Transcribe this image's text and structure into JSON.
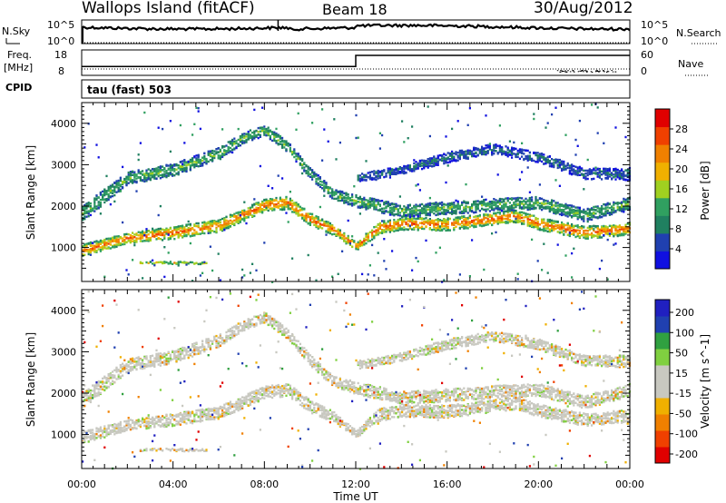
{
  "header": {
    "site": "Wallops Island (fitACF)",
    "beam": "Beam 18",
    "date": "30/Aug/2012"
  },
  "strip_nsky": {
    "label": "N.Sky",
    "right_label": "N.Search",
    "ticks_left": [
      "10^5",
      "10^0"
    ],
    "ticks_right": [
      "10^5",
      "10^0"
    ]
  },
  "strip_freq": {
    "label_line1": "Freq.",
    "label_line2": "[MHz]",
    "right_label": "Nave",
    "ticks_left": [
      "18",
      "8"
    ],
    "ticks_right": [
      "60",
      "0"
    ]
  },
  "cpid": {
    "label": "CPID",
    "value": "tau (fast) 503"
  },
  "colors": {
    "power_scale": [
      "#1010e0",
      "#2040b0",
      "#208060",
      "#30a060",
      "#a0d020",
      "#f0b000",
      "#f08000",
      "#f04000",
      "#e00000"
    ],
    "velocity_scale": [
      "#e00000",
      "#f04000",
      "#f08000",
      "#f0b000",
      "#c8c8c0",
      "#c8c8c0",
      "#80d040",
      "#30a040",
      "#2040b0",
      "#2020c0"
    ],
    "ground_scatter": "#c8c8c0"
  },
  "chart_data": [
    {
      "type": "heatmap",
      "name": "power-panel",
      "ylabel": "Slant Range [km]",
      "ylim": [
        180,
        4500
      ],
      "xlim": [
        0,
        24
      ],
      "y_ticks": [
        "1000",
        "2000",
        "3000",
        "4000"
      ],
      "colorbar": {
        "label": "Power [dB]",
        "ticks": [
          "4",
          "8",
          "12",
          "16",
          "20",
          "24",
          "28"
        ],
        "range": [
          0,
          32
        ]
      },
      "bands": [
        {
          "feature": "main-F-layer-scatter",
          "points": [
            [
              0,
              950,
              300
            ],
            [
              2,
              1250,
              250
            ],
            [
              4,
              1380,
              300
            ],
            [
              6,
              1550,
              300
            ],
            [
              8,
              2050,
              300
            ],
            [
              9,
              2100,
              300
            ],
            [
              10,
              1700,
              300
            ],
            [
              11,
              1450,
              250
            ],
            [
              12,
              1050,
              200
            ],
            [
              13,
              1500,
              300
            ],
            [
              14,
              1600,
              300
            ],
            [
              16,
              1580,
              300
            ],
            [
              18,
              1720,
              300
            ],
            [
              19,
              1780,
              300
            ],
            [
              20,
              1600,
              300
            ],
            [
              22,
              1380,
              300
            ],
            [
              24,
              1480,
              300
            ]
          ],
          "level": 26
        },
        {
          "feature": "second-hop-scatter",
          "points": [
            [
              0,
              1850,
              400
            ],
            [
              2,
              2700,
              300
            ],
            [
              4,
              2900,
              300
            ],
            [
              6,
              3300,
              300
            ],
            [
              7,
              3650,
              250
            ],
            [
              8,
              3850,
              250
            ],
            [
              9,
              3450,
              250
            ],
            [
              10,
              2800,
              250
            ],
            [
              11,
              2300,
              250
            ],
            [
              12,
              2150,
              300
            ],
            [
              14,
              1900,
              300
            ],
            [
              18,
              2050,
              300
            ],
            [
              20,
              2100,
              300
            ],
            [
              22,
              1800,
              300
            ],
            [
              24,
              2100,
              300
            ]
          ],
          "level": 14
        },
        {
          "feature": "far-range-scatter",
          "points": [
            [
              12,
              2700,
              200
            ],
            [
              14,
              2900,
              200
            ],
            [
              16,
              3200,
              250
            ],
            [
              18,
              3400,
              250
            ],
            [
              20,
              3200,
              250
            ],
            [
              22,
              2800,
              250
            ],
            [
              24,
              2800,
              300
            ]
          ],
          "level": 8
        },
        {
          "feature": "short-range-patch",
          "points": [
            [
              2.5,
              650,
              60
            ],
            [
              3.5,
              660,
              60
            ],
            [
              4.5,
              650,
              60
            ],
            [
              5.5,
              640,
              60
            ]
          ],
          "level": 20
        }
      ]
    },
    {
      "type": "heatmap",
      "name": "velocity-panel",
      "ylabel": "Slant Range [km]",
      "xlabel": "Time UT",
      "ylim": [
        180,
        4500
      ],
      "xlim": [
        0,
        24
      ],
      "y_ticks": [
        "1000",
        "2000",
        "3000",
        "4000"
      ],
      "x_ticks": [
        "00:00",
        "04:00",
        "08:00",
        "12:00",
        "16:00",
        "20:00",
        "00:00"
      ],
      "colorbar": {
        "label": "Velocity [m s^-1]",
        "ticks": [
          "200",
          "100",
          "50",
          "15",
          "-15",
          "-50",
          "-100",
          "-200"
        ],
        "range": [
          -250,
          250
        ]
      }
    }
  ]
}
